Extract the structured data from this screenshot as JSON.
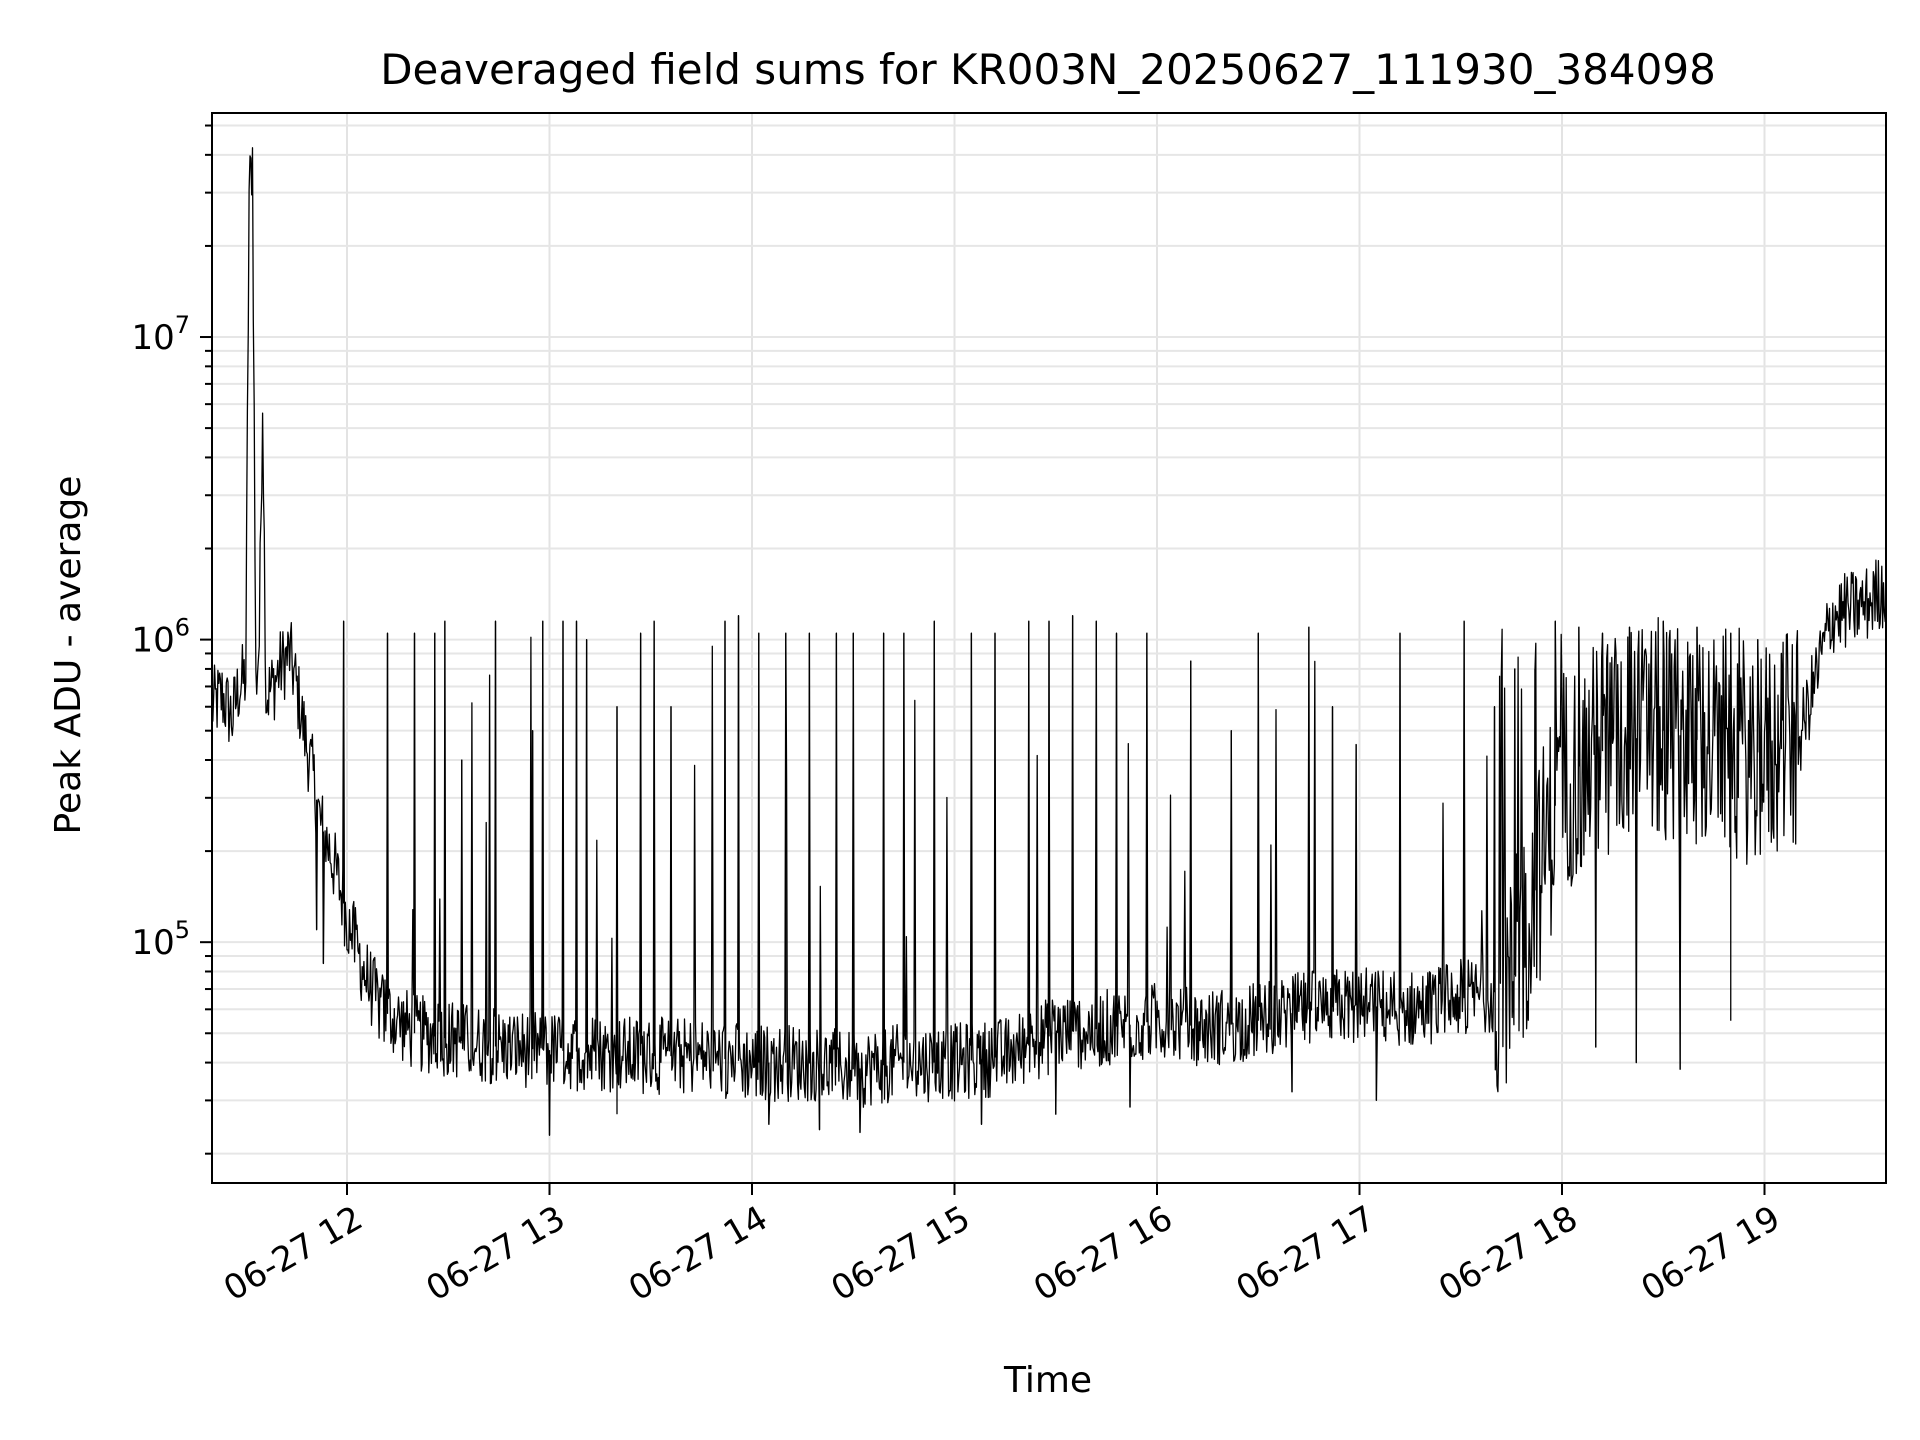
{
  "chart_data": {
    "type": "line",
    "title": "Deaveraged field sums for KR003N_20250627_111930_384098",
    "xlabel": "Time",
    "ylabel": "Peak ADU - average",
    "y_scale": "log",
    "ylim": [
      16000,
      55000000
    ],
    "xlim": [
      "2025-06-27 11:20",
      "2025-06-27 19:36"
    ],
    "grid": true,
    "line_color": "#000000",
    "x_ticks": [
      {
        "value": "2025-06-27 12:00",
        "label": "06-27 12"
      },
      {
        "value": "2025-06-27 13:00",
        "label": "06-27 13"
      },
      {
        "value": "2025-06-27 14:00",
        "label": "06-27 14"
      },
      {
        "value": "2025-06-27 15:00",
        "label": "06-27 15"
      },
      {
        "value": "2025-06-27 16:00",
        "label": "06-27 16"
      },
      {
        "value": "2025-06-27 17:00",
        "label": "06-27 17"
      },
      {
        "value": "2025-06-27 18:00",
        "label": "06-27 18"
      },
      {
        "value": "2025-06-27 19:00",
        "label": "06-27 19"
      }
    ],
    "y_ticks": [
      {
        "value": 100000,
        "base": "10",
        "exp": "5"
      },
      {
        "value": 1000000,
        "base": "10",
        "exp": "6"
      },
      {
        "value": 10000000,
        "base": "10",
        "exp": "7"
      }
    ],
    "series": [
      {
        "name": "",
        "x": [
          "2025-06-27 11:20",
          "2025-06-27 11:23",
          "2025-06-27 11:26",
          "2025-06-27 11:28",
          "2025-06-27 11:30",
          "2025-06-27 11:31",
          "2025-06-27 11:32",
          "2025-06-27 11:33",
          "2025-06-27 11:34",
          "2025-06-27 11:35",
          "2025-06-27 11:36",
          "2025-06-27 11:38",
          "2025-06-27 11:40",
          "2025-06-27 11:43",
          "2025-06-27 11:45",
          "2025-06-27 11:48",
          "2025-06-27 11:50",
          "2025-06-27 11:52",
          "2025-06-27 11:55",
          "2025-06-27 11:58",
          "2025-06-27 12:00",
          "2025-06-27 12:05",
          "2025-06-27 12:10",
          "2025-06-27 12:15",
          "2025-06-27 12:20",
          "2025-06-27 12:30",
          "2025-06-27 12:45",
          "2025-06-27 13:00",
          "2025-06-27 13:15",
          "2025-06-27 13:30",
          "2025-06-27 13:45",
          "2025-06-27 14:00",
          "2025-06-27 14:15",
          "2025-06-27 14:30",
          "2025-06-27 14:45",
          "2025-06-27 15:00",
          "2025-06-27 15:15",
          "2025-06-27 15:30",
          "2025-06-27 15:45",
          "2025-06-27 16:00",
          "2025-06-27 16:15",
          "2025-06-27 16:30",
          "2025-06-27 16:45",
          "2025-06-27 17:00",
          "2025-06-27 17:15",
          "2025-06-27 17:30",
          "2025-06-27 17:45",
          "2025-06-27 18:00",
          "2025-06-27 18:15",
          "2025-06-27 18:30",
          "2025-06-27 18:45",
          "2025-06-27 19:00",
          "2025-06-27 19:10",
          "2025-06-27 19:20",
          "2025-06-27 19:30",
          "2025-06-27 19:36"
        ],
        "y": [
          600000,
          650000,
          550000,
          700000,
          750000,
          30000000,
          40000000,
          700000,
          1000000,
          6500000,
          650000,
          700000,
          800000,
          900000,
          700000,
          450000,
          350000,
          250000,
          200000,
          150000,
          120000,
          80000,
          60000,
          55000,
          50000,
          48000,
          45000,
          44000,
          43000,
          42000,
          42000,
          40000,
          40000,
          38000,
          40000,
          40000,
          42000,
          50000,
          52000,
          55000,
          52000,
          55000,
          60000,
          62000,
          60000,
          65000,
          70000,
          350000,
          450000,
          500000,
          450000,
          420000,
          450000,
          1200000,
          1300000,
          1500000
        ]
      }
    ],
    "spikes": [
      {
        "x": "2025-06-27 11:59",
        "y": 1150000
      },
      {
        "x": "2025-06-27 12:12",
        "y": 1050000
      },
      {
        "x": "2025-06-27 12:20",
        "y": 1050000
      },
      {
        "x": "2025-06-27 12:26",
        "y": 1050000
      },
      {
        "x": "2025-06-27 12:29",
        "y": 1150000
      },
      {
        "x": "2025-06-27 12:34",
        "y": 400000
      },
      {
        "x": "2025-06-27 12:44",
        "y": 1150000
      },
      {
        "x": "2025-06-27 12:55",
        "y": 500000
      },
      {
        "x": "2025-06-27 12:58",
        "y": 1150000
      },
      {
        "x": "2025-06-27 13:04",
        "y": 1150000
      },
      {
        "x": "2025-06-27 13:08",
        "y": 1150000
      },
      {
        "x": "2025-06-27 13:11",
        "y": 1000000
      },
      {
        "x": "2025-06-27 13:20",
        "y": 600000
      },
      {
        "x": "2025-06-27 13:27",
        "y": 1050000
      },
      {
        "x": "2025-06-27 13:31",
        "y": 1150000
      },
      {
        "x": "2025-06-27 13:36",
        "y": 600000
      },
      {
        "x": "2025-06-27 13:52",
        "y": 1150000
      },
      {
        "x": "2025-06-27 13:56",
        "y": 1200000
      },
      {
        "x": "2025-06-27 14:02",
        "y": 1050000
      },
      {
        "x": "2025-06-27 14:10",
        "y": 1050000
      },
      {
        "x": "2025-06-27 14:17",
        "y": 1050000
      },
      {
        "x": "2025-06-27 14:25",
        "y": 1050000
      },
      {
        "x": "2025-06-27 14:30",
        "y": 1050000
      },
      {
        "x": "2025-06-27 14:39",
        "y": 1050000
      },
      {
        "x": "2025-06-27 14:45",
        "y": 1050000
      },
      {
        "x": "2025-06-27 14:54",
        "y": 1150000
      },
      {
        "x": "2025-06-27 15:05",
        "y": 1050000
      },
      {
        "x": "2025-06-27 15:12",
        "y": 1050000
      },
      {
        "x": "2025-06-27 15:22",
        "y": 1150000
      },
      {
        "x": "2025-06-27 15:28",
        "y": 1150000
      },
      {
        "x": "2025-06-27 15:35",
        "y": 1200000
      },
      {
        "x": "2025-06-27 15:42",
        "y": 1150000
      },
      {
        "x": "2025-06-27 15:48",
        "y": 1050000
      },
      {
        "x": "2025-06-27 15:57",
        "y": 1050000
      },
      {
        "x": "2025-06-27 16:10",
        "y": 850000
      },
      {
        "x": "2025-06-27 16:22",
        "y": 500000
      },
      {
        "x": "2025-06-27 16:30",
        "y": 1050000
      },
      {
        "x": "2025-06-27 16:45",
        "y": 1100000
      },
      {
        "x": "2025-06-27 16:52",
        "y": 600000
      },
      {
        "x": "2025-06-27 16:59",
        "y": 450000
      },
      {
        "x": "2025-06-27 17:12",
        "y": 1050000
      },
      {
        "x": "2025-06-27 17:31",
        "y": 1150000
      },
      {
        "x": "2025-06-27 17:40",
        "y": 600000
      },
      {
        "x": "2025-06-27 17:46",
        "y": 800000
      },
      {
        "x": "2025-06-27 17:52",
        "y": 800000
      },
      {
        "x": "2025-06-27 17:58",
        "y": 1150000
      },
      {
        "x": "2025-06-27 18:05",
        "y": 1100000
      },
      {
        "x": "2025-06-27 18:12",
        "y": 1050000
      },
      {
        "x": "2025-06-27 18:20",
        "y": 1100000
      },
      {
        "x": "2025-06-27 18:30",
        "y": 1150000
      },
      {
        "x": "2025-06-27 18:40",
        "y": 1100000
      },
      {
        "x": "2025-06-27 18:50",
        "y": 1050000
      },
      {
        "x": "2025-06-27 18:58",
        "y": 1000000
      },
      {
        "x": "2025-06-27 19:05",
        "y": 900000
      }
    ],
    "dips": [
      {
        "x": "2025-06-27 11:51",
        "y": 110000
      },
      {
        "x": "2025-06-27 11:53",
        "y": 85000
      },
      {
        "x": "2025-06-27 13:00",
        "y": 23000
      },
      {
        "x": "2025-06-27 13:20",
        "y": 27000
      },
      {
        "x": "2025-06-27 14:05",
        "y": 25000
      },
      {
        "x": "2025-06-27 14:20",
        "y": 24000
      },
      {
        "x": "2025-06-27 14:32",
        "y": 23500
      },
      {
        "x": "2025-06-27 15:08",
        "y": 25000
      },
      {
        "x": "2025-06-27 15:30",
        "y": 27000
      },
      {
        "x": "2025-06-27 15:52",
        "y": 28500
      },
      {
        "x": "2025-06-27 16:40",
        "y": 32000
      },
      {
        "x": "2025-06-27 17:05",
        "y": 30000
      },
      {
        "x": "2025-06-27 18:10",
        "y": 45000
      },
      {
        "x": "2025-06-27 18:22",
        "y": 40000
      },
      {
        "x": "2025-06-27 18:35",
        "y": 38000
      },
      {
        "x": "2025-06-27 18:50",
        "y": 55000
      }
    ]
  }
}
